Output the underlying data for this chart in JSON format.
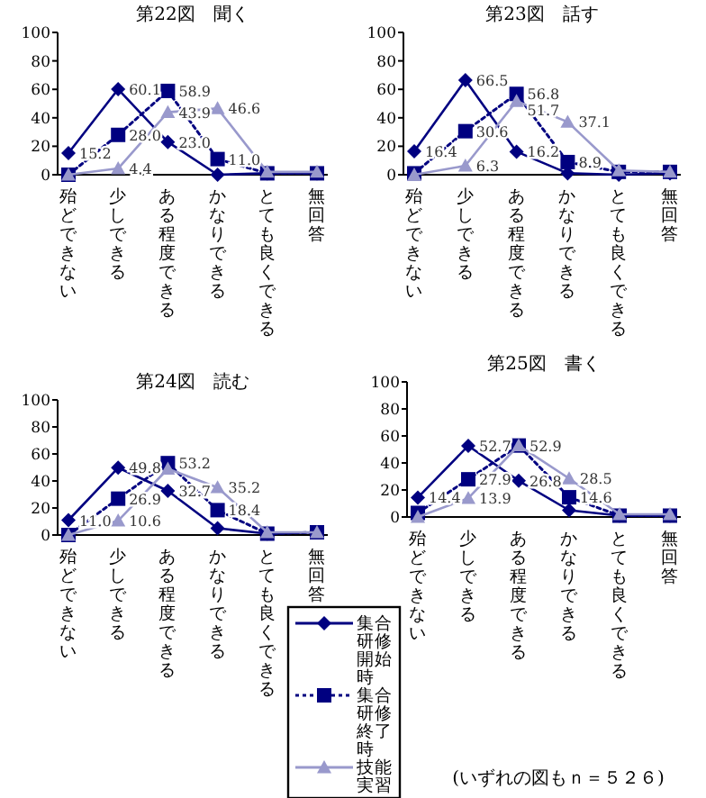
{
  "chart_data": [
    {
      "type": "line",
      "title": "第22図　聞く",
      "categories": [
        "殆どできない",
        "少しできる",
        "ある程度できる",
        "かなりできる",
        "とても良くできる",
        "無回答"
      ],
      "ylim": [
        0,
        100
      ],
      "yticks": [
        0,
        20,
        40,
        60,
        80,
        100
      ],
      "grid": false,
      "legend": false,
      "series": [
        {
          "color": "#000080",
          "marker": "diamond",
          "line_style": "solid",
          "values": [
            15.2,
            60.1,
            23.0,
            0,
            1,
            1
          ],
          "value_labels": [
            "15.2",
            "60.1",
            "23.0",
            null,
            null,
            null
          ]
        },
        {
          "color": "#000080",
          "marker": "square",
          "line_style": "dotted",
          "values": [
            0,
            28.0,
            58.9,
            11.0,
            1,
            1
          ],
          "value_labels": [
            null,
            "28.0",
            "58.9",
            "11.0",
            null,
            null
          ]
        },
        {
          "color": "#9999cc",
          "marker": "triangle",
          "line_style": "solid",
          "values": [
            0,
            4.4,
            43.9,
            46.6,
            2,
            2
          ],
          "value_labels": [
            null,
            "4.4",
            "43.9",
            "46.6",
            null,
            null
          ]
        }
      ]
    },
    {
      "type": "line",
      "title": "第23図　話す",
      "categories": [
        "殆どできない",
        "少しできる",
        "ある程度できる",
        "かなりできる",
        "とても良くできる",
        "無回答"
      ],
      "ylim": [
        0,
        100
      ],
      "yticks": [
        0,
        20,
        40,
        60,
        80,
        100
      ],
      "grid": false,
      "legend": false,
      "series": [
        {
          "color": "#000080",
          "marker": "diamond",
          "line_style": "solid",
          "values": [
            16.4,
            66.5,
            16.2,
            1,
            0,
            1
          ],
          "value_labels": [
            "16.4",
            "66.5",
            "16.2",
            null,
            null,
            null
          ]
        },
        {
          "color": "#000080",
          "marker": "square",
          "line_style": "dotted",
          "values": [
            1,
            30.6,
            56.8,
            8.9,
            2,
            2
          ],
          "value_labels": [
            null,
            "30.6",
            "56.8",
            "8.9",
            null,
            null
          ]
        },
        {
          "color": "#9999cc",
          "marker": "triangle",
          "line_style": "solid",
          "values": [
            0,
            6.3,
            51.7,
            37.1,
            3,
            2
          ],
          "value_labels": [
            null,
            "6.3",
            "51.7",
            "37.1",
            null,
            null
          ]
        }
      ]
    },
    {
      "type": "line",
      "title": "第24図　読む",
      "categories": [
        "殆どできない",
        "少しできる",
        "ある程度できる",
        "かなりできる",
        "とても良くできる",
        "無回答"
      ],
      "ylim": [
        0,
        100
      ],
      "yticks": [
        0,
        20,
        40,
        60,
        80,
        100
      ],
      "grid": false,
      "legend": false,
      "series": [
        {
          "color": "#000080",
          "marker": "diamond",
          "line_style": "solid",
          "values": [
            11.0,
            49.8,
            32.7,
            5,
            1,
            2
          ],
          "value_labels": [
            "11.0",
            "49.8",
            "32.7",
            null,
            null,
            null
          ]
        },
        {
          "color": "#000080",
          "marker": "square",
          "line_style": "dotted",
          "values": [
            0,
            26.9,
            53.2,
            18.4,
            1,
            2
          ],
          "value_labels": [
            null,
            "26.9",
            "53.2",
            "18.4",
            null,
            null
          ]
        },
        {
          "color": "#9999cc",
          "marker": "triangle",
          "line_style": "solid",
          "values": [
            0,
            10.6,
            49,
            35.2,
            2,
            2
          ],
          "value_labels": [
            null,
            "10.6",
            null,
            "35.2",
            null,
            null
          ]
        }
      ]
    },
    {
      "type": "line",
      "title": "第25図　書く",
      "categories": [
        "殆どできない",
        "少しできる",
        "ある程度できる",
        "かなりできる",
        "とても良くできる",
        "無回答"
      ],
      "ylim": [
        0,
        100
      ],
      "yticks": [
        0,
        20,
        40,
        60,
        80,
        100
      ],
      "grid": false,
      "legend": "bottom left",
      "annotations": [
        "(いずれの図もｎ＝５２６)"
      ],
      "series": [
        {
          "name": "集合研修開始時",
          "color": "#000080",
          "marker": "diamond",
          "line_style": "solid",
          "values": [
            14.4,
            52.7,
            26.8,
            5,
            1,
            1
          ],
          "value_labels": [
            "14.4",
            "52.7",
            "26.8",
            null,
            null,
            null
          ]
        },
        {
          "name": "集合研修終了時",
          "color": "#000080",
          "marker": "square",
          "line_style": "dotted",
          "values": [
            3,
            27.9,
            52.9,
            14.6,
            1,
            1
          ],
          "value_labels": [
            null,
            "27.9",
            "52.9",
            "14.6",
            null,
            null
          ]
        },
        {
          "name": "技能実習",
          "color": "#9999cc",
          "marker": "triangle",
          "line_style": "solid",
          "values": [
            0,
            13.9,
            53,
            28.5,
            2,
            2
          ],
          "value_labels": [
            null,
            "13.9",
            null,
            "28.5",
            null,
            null
          ]
        }
      ]
    }
  ]
}
